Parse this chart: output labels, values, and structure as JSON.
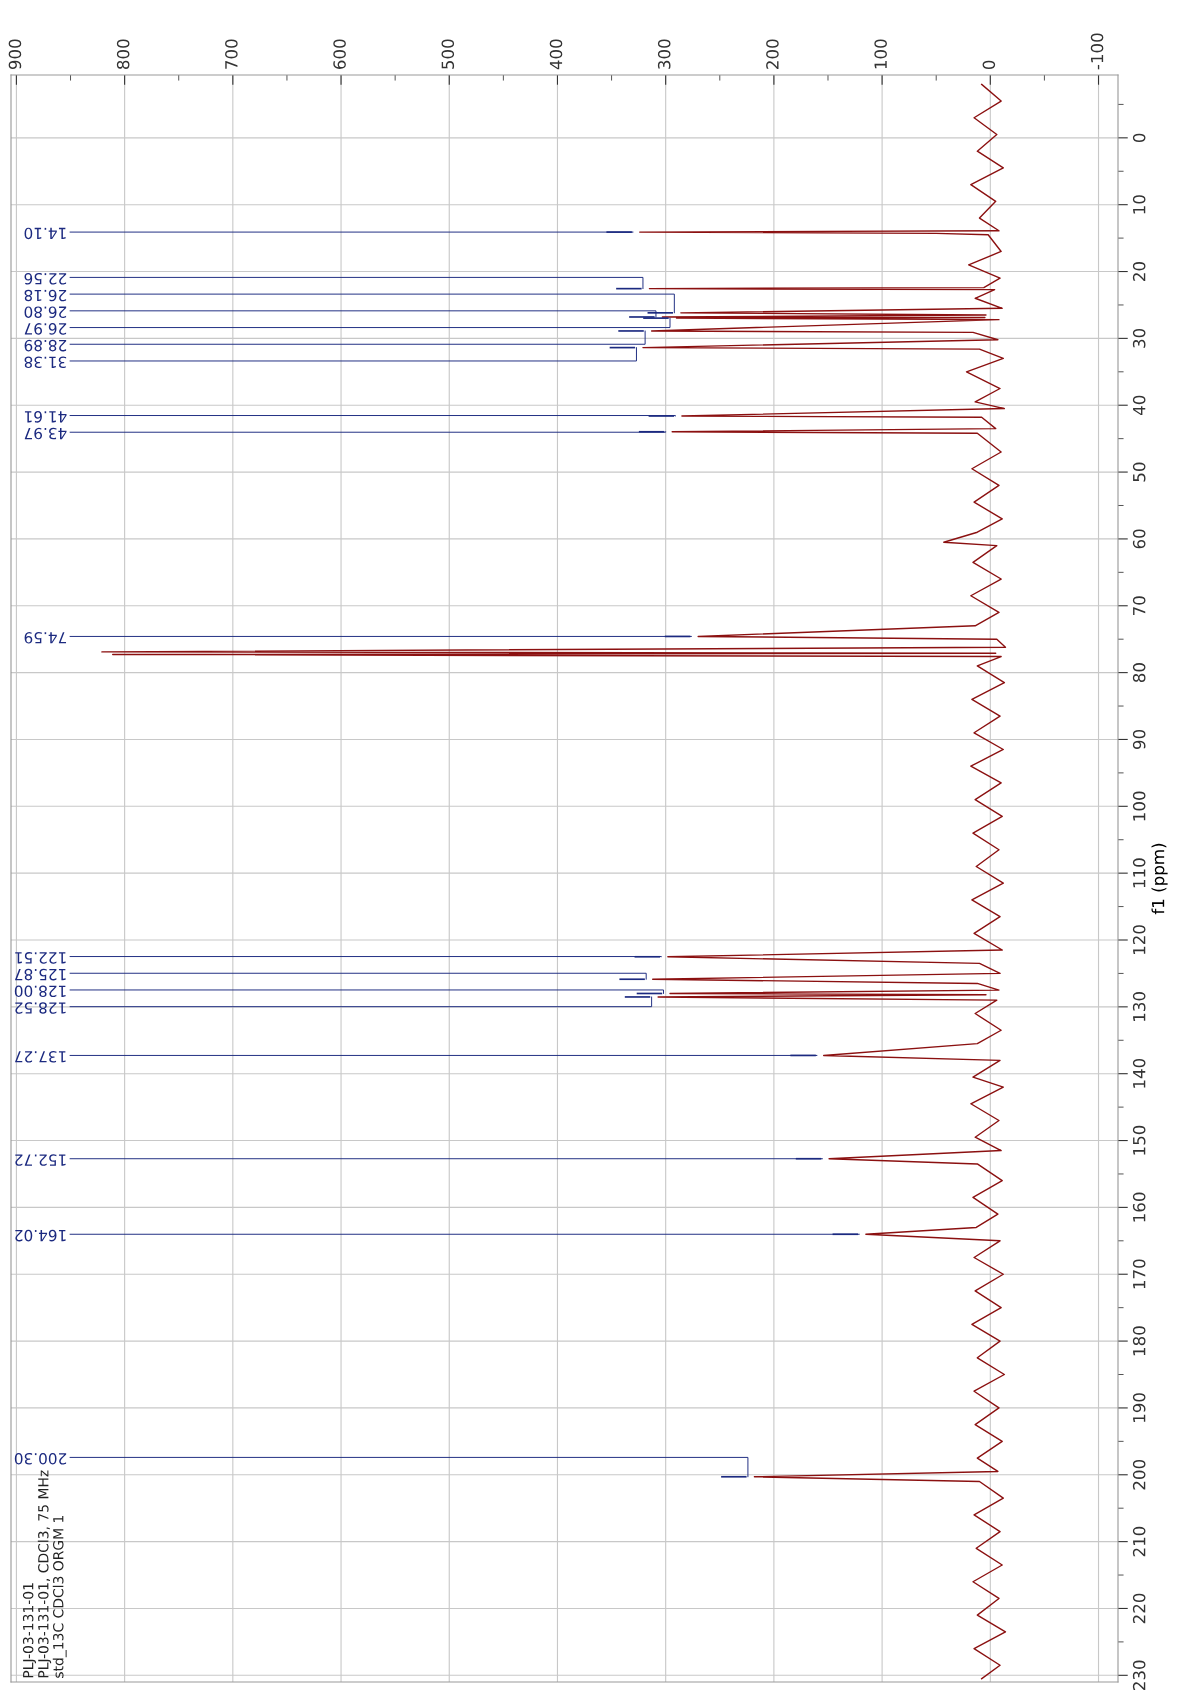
{
  "chart_data": {
    "type": "line",
    "orientation": "horizontal",
    "ylabel": "f1 (ppm)",
    "xlim": [
      905,
      -118
    ],
    "xticks": [
      900,
      800,
      700,
      600,
      500,
      400,
      300,
      200,
      100,
      0,
      -100
    ],
    "ylim": [
      231,
      -9.4
    ],
    "yticks": [
      0,
      10,
      20,
      30,
      40,
      50,
      60,
      70,
      80,
      90,
      100,
      110,
      120,
      130,
      140,
      150,
      160,
      170,
      180,
      190,
      200,
      210,
      220,
      230
    ],
    "grid": true,
    "x": [
      -8,
      -5.5,
      -3,
      -0.5,
      2,
      4.5,
      7,
      9.5,
      12,
      13.9,
      14.1,
      14.3,
      14.5,
      17,
      19,
      21,
      22.4,
      22.56,
      22.7,
      24,
      25.5,
      26.18,
      26.5,
      26.8,
      26.88,
      26.97,
      27.2,
      28.89,
      29.1,
      30.2,
      31.38,
      31.6,
      33,
      35,
      37.5,
      39.5,
      40.5,
      41.61,
      41.8,
      43.5,
      43.97,
      44.2,
      47,
      49.5,
      52,
      54.5,
      57,
      59,
      60.5,
      61,
      63.5,
      66,
      68.5,
      71,
      73,
      74.59,
      75,
      76.2,
      76.9,
      77.1,
      77.3,
      77.6,
      79,
      81.5,
      84,
      86.5,
      89,
      91.5,
      94,
      96.5,
      99,
      101.5,
      104,
      106.5,
      109,
      111.5,
      114,
      116.5,
      119,
      121.5,
      122.51,
      123.5,
      125,
      125.87,
      126.5,
      127.5,
      128.0,
      128.2,
      128.52,
      129,
      131,
      133.5,
      135.5,
      137.27,
      138,
      140.5,
      142,
      144.5,
      147,
      149.5,
      151.5,
      152.72,
      153.5,
      156,
      158.5,
      161,
      163,
      164.02,
      165,
      167.5,
      170,
      172.5,
      175,
      177.5,
      180,
      182.5,
      185,
      187.5,
      190,
      192.5,
      195,
      197.5,
      199.5,
      200.3,
      201,
      203.5,
      206,
      208.5,
      211,
      213.5,
      216,
      218.5,
      221,
      223.5,
      226,
      228.5,
      230.5
    ],
    "series": [
      {
        "color": "#8b1010",
        "values": [
          8,
          -10,
          15,
          -6,
          12,
          -12,
          18,
          -5,
          10,
          -8,
          324,
          50,
          2,
          -10,
          20,
          -9,
          6,
          315,
          -4,
          14,
          -11,
          286,
          4,
          303,
          5,
          290,
          -8,
          313,
          16,
          -7,
          321,
          10,
          -12,
          22,
          -9,
          14,
          -13,
          285,
          8,
          -5,
          294,
          12,
          -10,
          17,
          -8,
          15,
          -11,
          12,
          43,
          -6,
          16,
          -10,
          18,
          -8,
          14,
          270,
          -6,
          -14,
          821,
          -5,
          811,
          -10,
          12,
          -13,
          17,
          -9,
          15,
          -12,
          18,
          -10,
          14,
          -11,
          16,
          -8,
          13,
          -12,
          17,
          -9,
          15,
          -11,
          298,
          10,
          -9,
          312,
          12,
          -8,
          296,
          4,
          307,
          -6,
          14,
          -10,
          12,
          154,
          -9,
          16,
          -12,
          18,
          -8,
          14,
          -10,
          149,
          12,
          -11,
          16,
          -7,
          13,
          115,
          -9,
          15,
          -12,
          14,
          -10,
          17,
          -9,
          12,
          -13,
          15,
          -8,
          14,
          -11,
          12,
          -7,
          218,
          10,
          -12,
          15,
          -9,
          13,
          -11,
          16,
          -8,
          12,
          -14,
          15,
          -9,
          8
        ]
      }
    ],
    "annotations": [
      {
        "text": "14.10",
        "y": 14.1,
        "x": 324
      },
      {
        "text": "22.56",
        "y": 22.56,
        "x": 315
      },
      {
        "text": "26.18",
        "y": 26.18,
        "x": 286
      },
      {
        "text": "26.80",
        "y": 26.8,
        "x": 303
      },
      {
        "text": "26.97",
        "y": 26.97,
        "x": 290
      },
      {
        "text": "28.89",
        "y": 28.89,
        "x": 313
      },
      {
        "text": "31.38",
        "y": 31.38,
        "x": 321
      },
      {
        "text": "41.61",
        "y": 41.61,
        "x": 285
      },
      {
        "text": "43.97",
        "y": 43.97,
        "x": 294
      },
      {
        "text": "74.59",
        "y": 74.59,
        "x": 270
      },
      {
        "text": "122.51",
        "y": 122.51,
        "x": 298
      },
      {
        "text": "125.87",
        "y": 125.87,
        "x": 312
      },
      {
        "text": "128.00",
        "y": 128.0,
        "x": 296
      },
      {
        "text": "128.52",
        "y": 128.52,
        "x": 307
      },
      {
        "text": "137.27",
        "y": 137.27,
        "x": 154
      },
      {
        "text": "152.72",
        "y": 152.72,
        "x": 149
      },
      {
        "text": "164.02",
        "y": 164.02,
        "x": 115
      },
      {
        "text": "200.30",
        "y": 200.3,
        "x": 218
      },
      "PLJ-03-131-01",
      "PLJ-03-131-01, CDCl3, 75 MHz",
      "std_13C CDCl3 ORGM 1"
    ]
  }
}
